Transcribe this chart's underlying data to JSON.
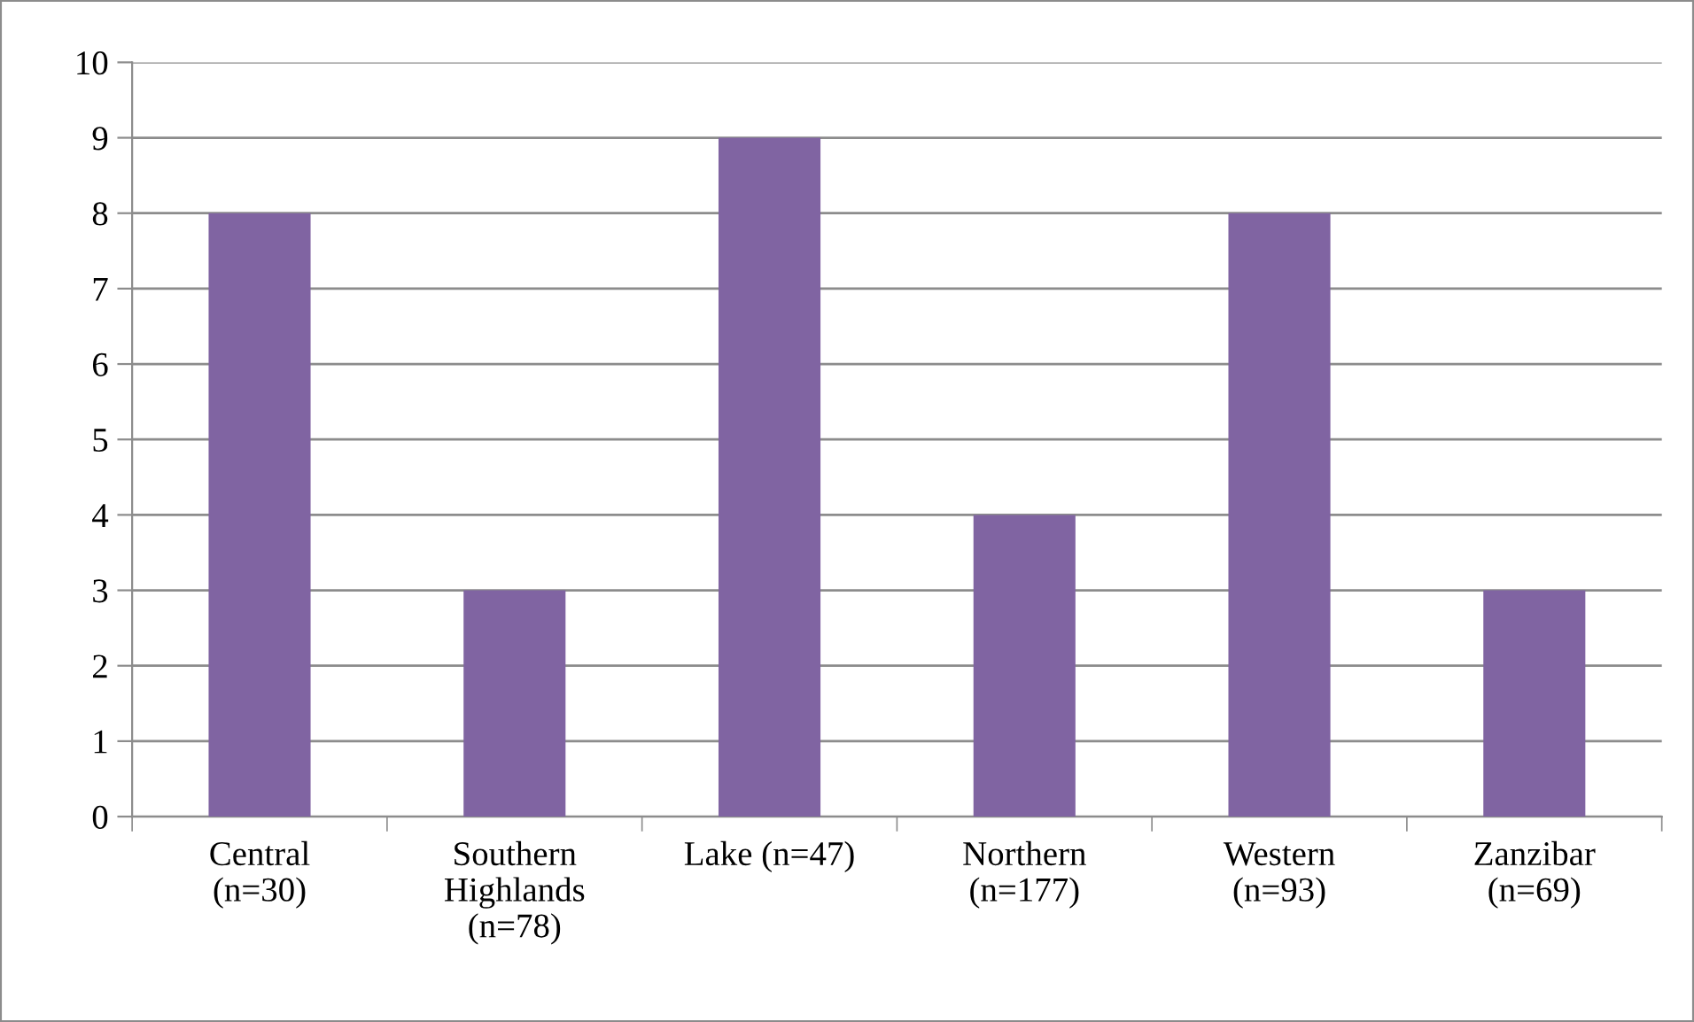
{
  "chart_data": {
    "type": "bar",
    "categories": [
      "Central\n(n=30)",
      "Southern\nHighlands\n(n=78)",
      "Lake (n=47)",
      "Northern\n(n=177)",
      "Western\n(n=93)",
      "Zanzibar\n(n=69)"
    ],
    "values": [
      8,
      3,
      9,
      4,
      8,
      3
    ],
    "color": "#8064a2",
    "ylim": [
      0,
      10
    ],
    "yticks": [
      0,
      1,
      2,
      3,
      4,
      5,
      6,
      7,
      8,
      9,
      10
    ],
    "grid": "y"
  }
}
